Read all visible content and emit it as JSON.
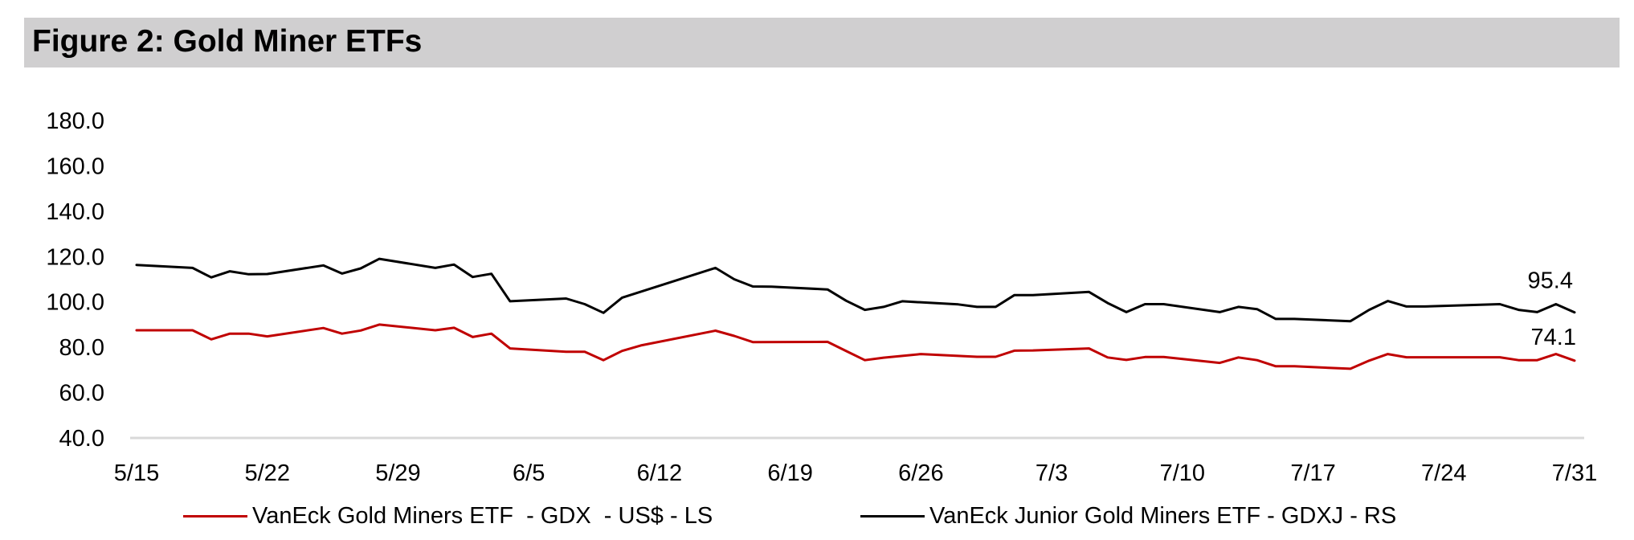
{
  "figure": {
    "title": "Figure 2: Gold Miner ETFs"
  },
  "colors": {
    "gdx": "#c00000",
    "gdxj": "#000000",
    "baseline": "#d9d9d9",
    "title_bg": "#d0cfd0"
  },
  "chart_data": {
    "type": "line",
    "title": "Figure 2: Gold Miner ETFs",
    "xlabel": "",
    "ylabel": "",
    "ylim": [
      40,
      180
    ],
    "yticks": [
      "180.0",
      "160.0",
      "140.0",
      "120.0",
      "100.0",
      "80.0",
      "60.0",
      "40.0"
    ],
    "xtick_labels": [
      "5/15",
      "5/22",
      "5/29",
      "6/5",
      "6/12",
      "6/19",
      "6/26",
      "7/3",
      "7/10",
      "7/17",
      "7/24",
      "7/31"
    ],
    "grid": false,
    "legend_position": "bottom",
    "x": [
      "5/15",
      "5/16",
      "5/17",
      "5/18",
      "5/19",
      "5/20",
      "5/21",
      "5/22",
      "5/23",
      "5/24",
      "5/25",
      "5/26",
      "5/27",
      "5/28",
      "5/29",
      "5/30",
      "5/31",
      "6/1",
      "6/2",
      "6/3",
      "6/4",
      "6/5",
      "6/6",
      "6/7",
      "6/8",
      "6/9",
      "6/10",
      "6/11",
      "6/12",
      "6/13",
      "6/14",
      "6/15",
      "6/16",
      "6/17",
      "6/18",
      "6/19",
      "6/20",
      "6/21",
      "6/22",
      "6/23",
      "6/24",
      "6/25",
      "6/26",
      "6/27",
      "6/28",
      "6/29",
      "6/30",
      "7/1",
      "7/2",
      "7/3",
      "7/4",
      "7/5",
      "7/6",
      "7/7",
      "7/8",
      "7/9",
      "7/10",
      "7/11",
      "7/12",
      "7/13",
      "7/14",
      "7/15",
      "7/16",
      "7/17",
      "7/18",
      "7/19",
      "7/20",
      "7/21",
      "7/22",
      "7/23",
      "7/24",
      "7/25",
      "7/26",
      "7/27",
      "7/28",
      "7/29",
      "7/30",
      "7/31"
    ],
    "series": [
      {
        "name": "VanEck Gold Miners ETF  - GDX  - US$ - LS",
        "values": [
          87.5,
          null,
          null,
          87.5,
          83.5,
          86,
          86,
          84.8,
          null,
          null,
          88.5,
          86,
          87.4,
          90,
          null,
          null,
          87.5,
          88.6,
          84.5,
          86,
          79.5,
          null,
          null,
          78,
          78,
          74.3,
          78.4,
          80.8,
          null,
          null,
          null,
          87.3,
          85,
          82.3,
          null,
          null,
          null,
          82.4,
          78.3,
          74.3,
          75.4,
          null,
          77,
          null,
          null,
          75.8,
          75.8,
          78.5,
          78.6,
          null,
          null,
          79.5,
          75.5,
          74.4,
          75.7,
          75.7,
          null,
          null,
          73.1,
          75.5,
          74.3,
          71.6,
          71.6,
          null,
          null,
          70.5,
          74.1,
          77,
          75.6,
          null,
          null,
          null,
          null,
          75.6,
          74.3,
          74.3,
          77,
          74.1
        ],
        "color": "#c00000"
      },
      {
        "name": "VanEck Junior Gold Miners ETF - GDXJ - RS",
        "values": [
          116.3,
          null,
          null,
          115,
          110.8,
          113.5,
          112.2,
          112.3,
          null,
          null,
          116.1,
          112.5,
          114.8,
          119,
          null,
          null,
          115,
          116.5,
          111,
          112.4,
          100.3,
          null,
          null,
          101.5,
          99,
          95.2,
          101.9,
          null,
          null,
          null,
          null,
          115,
          110,
          106.8,
          106.7,
          null,
          null,
          105.5,
          100.5,
          96.5,
          97.8,
          100.3,
          null,
          null,
          98.9,
          97.8,
          97.8,
          103,
          103,
          null,
          null,
          104.4,
          99.5,
          95.5,
          99,
          99,
          null,
          null,
          95.5,
          97.8,
          96.8,
          92.5,
          92.5,
          null,
          null,
          91.5,
          96.5,
          100.4,
          98,
          98,
          null,
          null,
          null,
          99,
          96.5,
          95.5,
          99,
          95.4
        ],
        "color": "#000000"
      }
    ],
    "annotations": [
      "95.4",
      "74.1"
    ]
  }
}
